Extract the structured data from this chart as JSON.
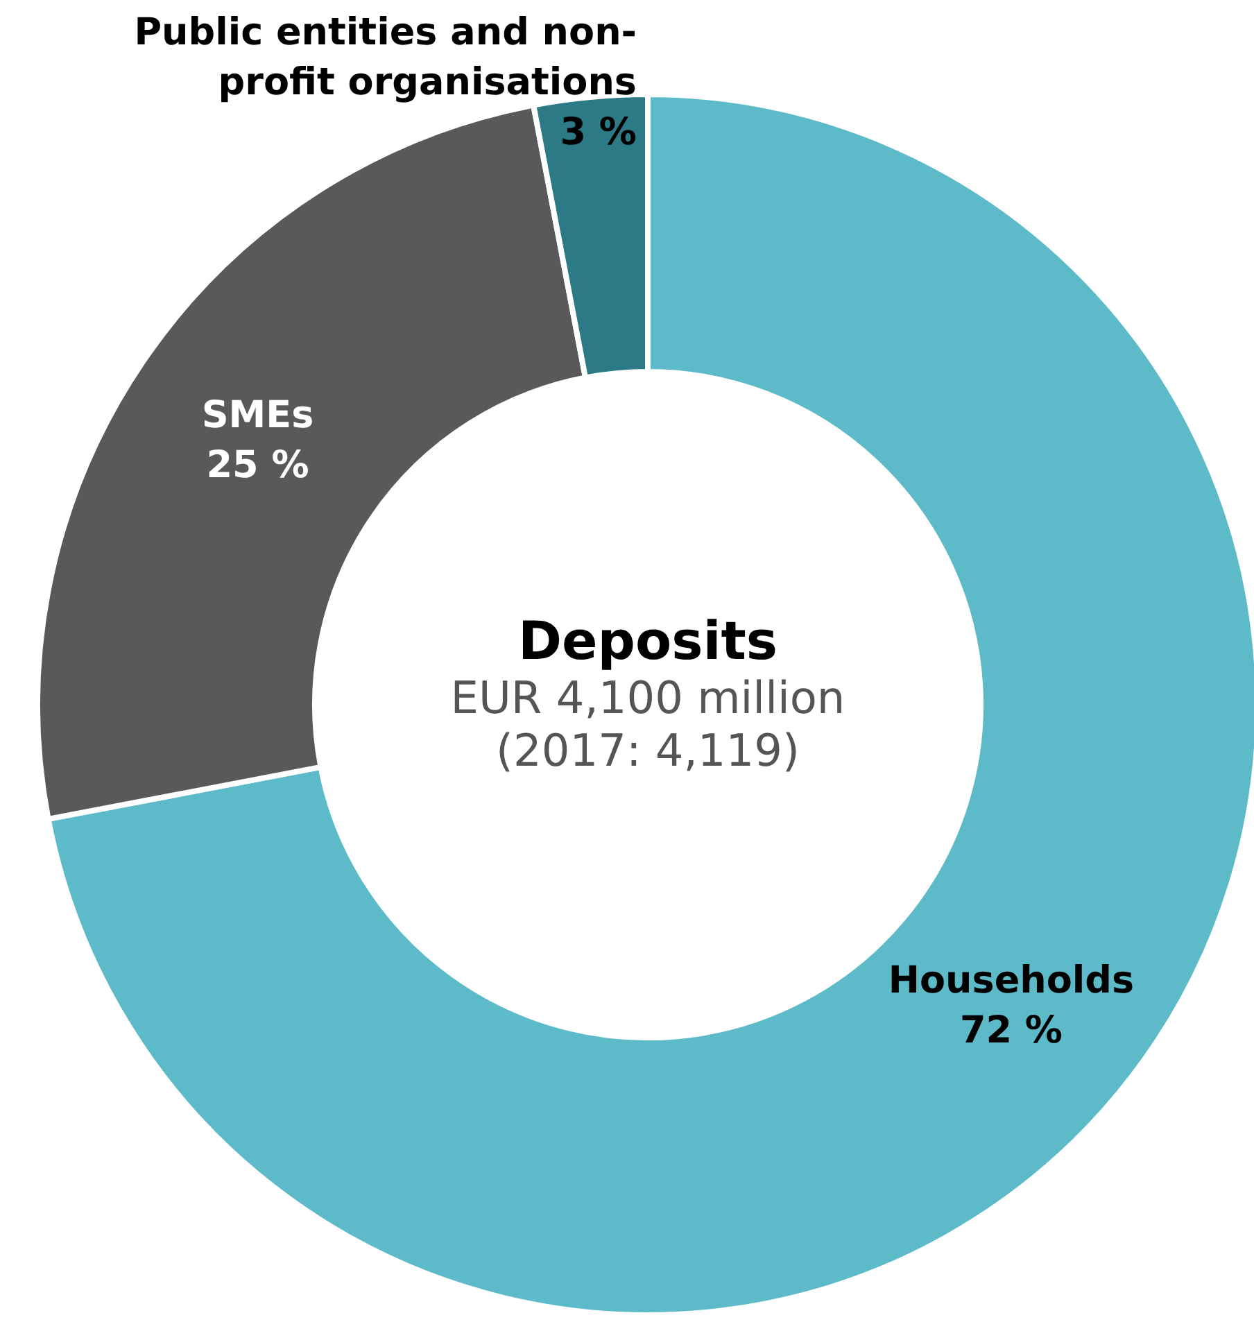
{
  "chart_data": {
    "type": "donut",
    "title": "Deposits",
    "subtitle": "EUR 4,100 million",
    "annotations": [
      "(2017: 4,119)"
    ],
    "categories": [
      "Households",
      "SMEs",
      "Public entities and non-profit organisations"
    ],
    "values": [
      72,
      25,
      3
    ],
    "value_labels": [
      "72 %",
      "25 %",
      "3 %"
    ],
    "colors": [
      "#5dbbc9",
      "#59595b",
      "#2b7a86"
    ],
    "legend": false
  }
}
